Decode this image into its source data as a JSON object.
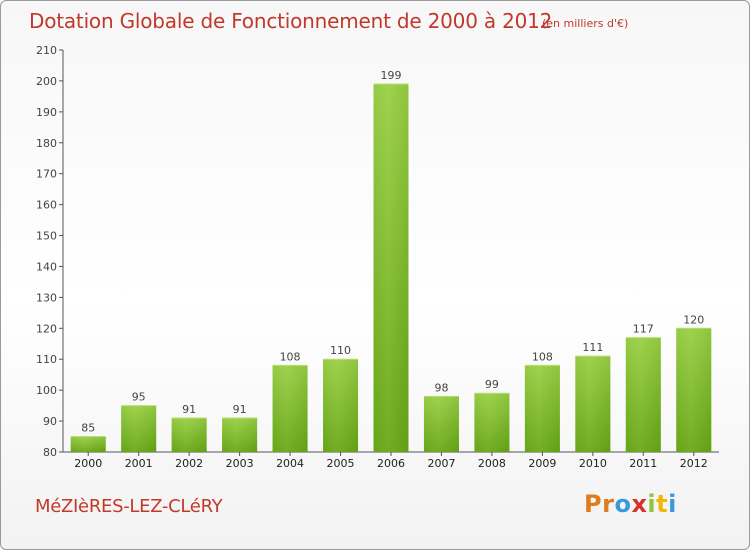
{
  "header": {
    "title": "Dotation Globale de Fonctionnement de 2000 à 2012",
    "subtitle": "(en milliers d'€)"
  },
  "footer": {
    "commune": "MéZIèRES-LEZ-CLéRY",
    "logo": [
      "P",
      "r",
      "o",
      "x",
      "i",
      "t",
      "i"
    ],
    "logo_colors": [
      "#e07b1f",
      "#e07b1f",
      "#3a9ad9",
      "#d6332b",
      "#8cc63f",
      "#f2b705",
      "#3a9ad9"
    ]
  },
  "chart_data": {
    "type": "bar",
    "title": "Dotation Globale de Fonctionnement de 2000 à 2012",
    "subtitle": "(en milliers d'€)",
    "categories": [
      "2000",
      "2001",
      "2002",
      "2003",
      "2004",
      "2005",
      "2006",
      "2007",
      "2008",
      "2009",
      "2010",
      "2011",
      "2012"
    ],
    "values": [
      85,
      95,
      91,
      91,
      108,
      110,
      199,
      98,
      99,
      108,
      111,
      117,
      120
    ],
    "ylim": [
      80,
      210
    ],
    "yticks": [
      80,
      90,
      100,
      110,
      120,
      130,
      140,
      150,
      160,
      170,
      180,
      190,
      200,
      210
    ],
    "grid": false,
    "data_labels": true,
    "bar_color_top": "#9ccf4a",
    "bar_color_bottom": "#5f9e12"
  }
}
